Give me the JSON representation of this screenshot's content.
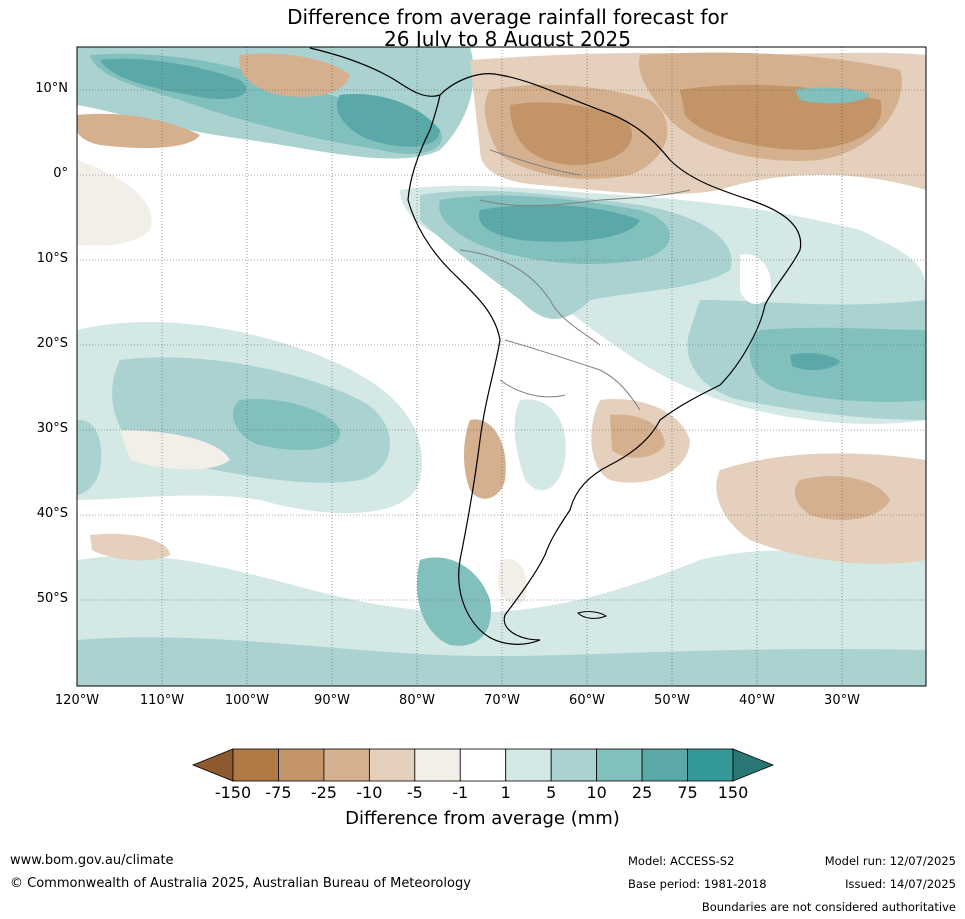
{
  "title": {
    "line1": "Difference from average rainfall forecast for",
    "line2": "26 July to 8 August 2025"
  },
  "map": {
    "latitude_labels": [
      "10°N",
      "0°",
      "10°S",
      "20°S",
      "30°S",
      "40°S",
      "50°S"
    ],
    "longitude_labels": [
      "120°W",
      "110°W",
      "100°W",
      "90°W",
      "80°W",
      "70°W",
      "60°W",
      "50°W",
      "40°W",
      "30°W"
    ],
    "gridlines": true
  },
  "colorbar": {
    "label": "Difference from average (mm)",
    "ticks": [
      "-150",
      "-75",
      "-25",
      "-10",
      "-5",
      "-1",
      "1",
      "5",
      "10",
      "25",
      "75",
      "150"
    ],
    "colors": [
      "#8c5a2e",
      "#b07a42",
      "#c29467",
      "#d4b08e",
      "#e4d0bd",
      "#f2eee8",
      "#ffffff",
      "#d4e8e6",
      "#a9d2d1",
      "#82c0be",
      "#5aa9a8",
      "#35999a",
      "#2a7775"
    ]
  },
  "footer": {
    "website": "www.bom.gov.au/climate",
    "copyright": "© Commonwealth of Australia 2025, Australian Bureau of Meteorology",
    "model": "Model: ACCESS-S2",
    "base_period": "Base period: 1981-2018",
    "model_run": "Model run: 12/07/2025",
    "issued": "Issued: 14/07/2025",
    "disclaimer": "Boundaries are not considered authoritative"
  }
}
